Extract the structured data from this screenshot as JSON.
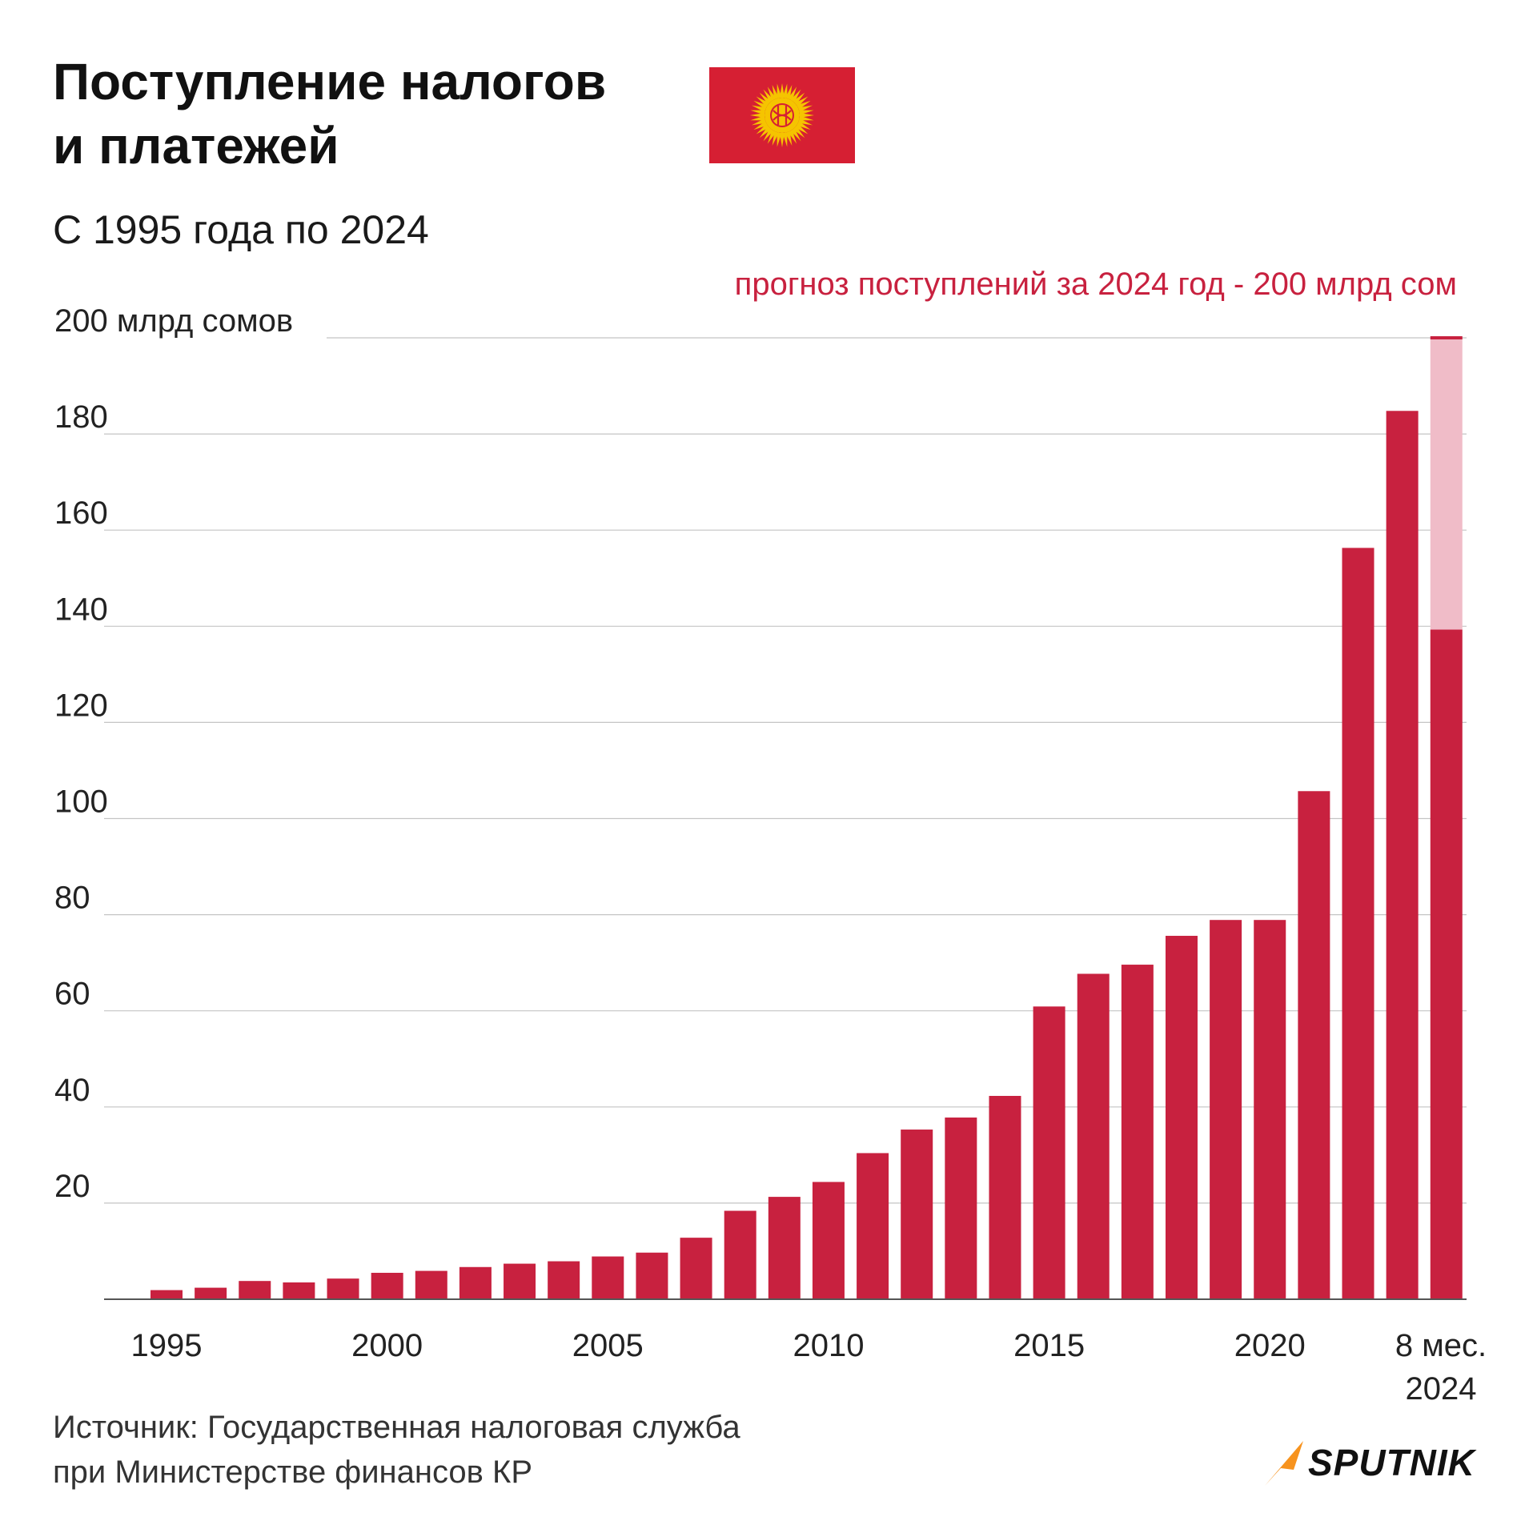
{
  "header": {
    "title_line1": "Поступление налогов",
    "title_line2": "и платежей",
    "subtitle": "С 1995 года по 2024",
    "flag_icon": "kyrgyzstan-flag-icon"
  },
  "annotation": {
    "forecast_text": "прогноз поступлений за 2024 год - 200 млрд сом",
    "color": "#c8213f"
  },
  "chart_data": {
    "type": "bar",
    "title": "Поступление налогов и платежей",
    "subtitle": "С 1995 года по 2024",
    "ylabel": "200 млрд сомов",
    "xlabel": "",
    "ylim": [
      0,
      200
    ],
    "yticks": [
      20,
      40,
      60,
      80,
      100,
      120,
      140,
      160,
      180
    ],
    "ytick_top_label": "200 млрд сомов",
    "grid": true,
    "categories": [
      "1995",
      "1996",
      "1997",
      "1998",
      "1999",
      "2000",
      "2001",
      "2002",
      "2003",
      "2004",
      "2005",
      "2006",
      "2007",
      "2008",
      "2009",
      "2010",
      "2011",
      "2012",
      "2013",
      "2014",
      "2015",
      "2016",
      "2017",
      "2018",
      "2019",
      "2020",
      "2021",
      "2022",
      "2023",
      "8 мес. 2024"
    ],
    "xtick_labels": [
      {
        "category": "1995",
        "label": "1995"
      },
      {
        "category": "2000",
        "label": "2000"
      },
      {
        "category": "2005",
        "label": "2005"
      },
      {
        "category": "2010",
        "label": "2010"
      },
      {
        "category": "2015",
        "label": "2015"
      },
      {
        "category": "2020",
        "label": "2020"
      },
      {
        "category": "8 мес. 2024",
        "label": "8 мес.",
        "label2": "2024"
      }
    ],
    "series": [
      {
        "name": "Поступления",
        "color": "#c8213f",
        "values": [
          1.9,
          2.4,
          3.8,
          3.5,
          4.3,
          5.5,
          5.9,
          6.7,
          7.4,
          7.9,
          8.9,
          9.7,
          12.8,
          18.4,
          21.3,
          24.4,
          30.4,
          35.3,
          37.8,
          42.3,
          60.9,
          67.7,
          69.6,
          75.6,
          78.9,
          78.9,
          105.7,
          156.3,
          184.8,
          139.3
        ]
      },
      {
        "name": "прогноз 2024",
        "color": "#f0bcc8",
        "values": [
          null,
          null,
          null,
          null,
          null,
          null,
          null,
          null,
          null,
          null,
          null,
          null,
          null,
          null,
          null,
          null,
          null,
          null,
          null,
          null,
          null,
          null,
          null,
          null,
          null,
          null,
          null,
          null,
          null,
          200
        ]
      }
    ]
  },
  "footer": {
    "source_line1": "Источник: Государственная налоговая служба",
    "source_line2": "при Министерстве финансов КР",
    "logo_text": "SPUTNIK",
    "logo_color": "#f7931e"
  }
}
